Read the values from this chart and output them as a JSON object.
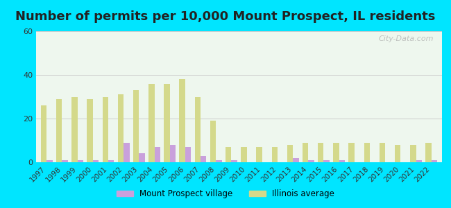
{
  "title": "Number of permits per 10,000 Mount Prospect, IL residents",
  "years": [
    1997,
    1998,
    1999,
    2000,
    2001,
    2002,
    2003,
    2004,
    2005,
    2006,
    2007,
    2008,
    2009,
    2010,
    2011,
    2012,
    2013,
    2014,
    2015,
    2016,
    2017,
    2018,
    2019,
    2020,
    2021,
    2022
  ],
  "village_values": [
    1,
    1,
    1,
    1,
    1,
    9,
    4,
    7,
    8,
    7,
    3,
    1,
    1,
    0,
    0,
    0,
    2,
    1,
    1,
    1,
    0,
    0,
    0,
    0,
    1,
    1
  ],
  "illinois_values": [
    26,
    29,
    30,
    29,
    30,
    31,
    33,
    36,
    36,
    38,
    30,
    19,
    7,
    7,
    7,
    7,
    8,
    9,
    9,
    9,
    9,
    9,
    9,
    8,
    8,
    9
  ],
  "village_color": "#c9a0dc",
  "illinois_color": "#d4d98b",
  "ylim": [
    0,
    60
  ],
  "yticks": [
    0,
    20,
    40,
    60
  ],
  "plot_bg_color": "#eef7ee",
  "outer_background": "#00e5ff",
  "grid_color": "#cccccc",
  "title_fontsize": 13,
  "legend_village": "Mount Prospect village",
  "legend_illinois": "Illinois average",
  "watermark": "City-Data.com"
}
